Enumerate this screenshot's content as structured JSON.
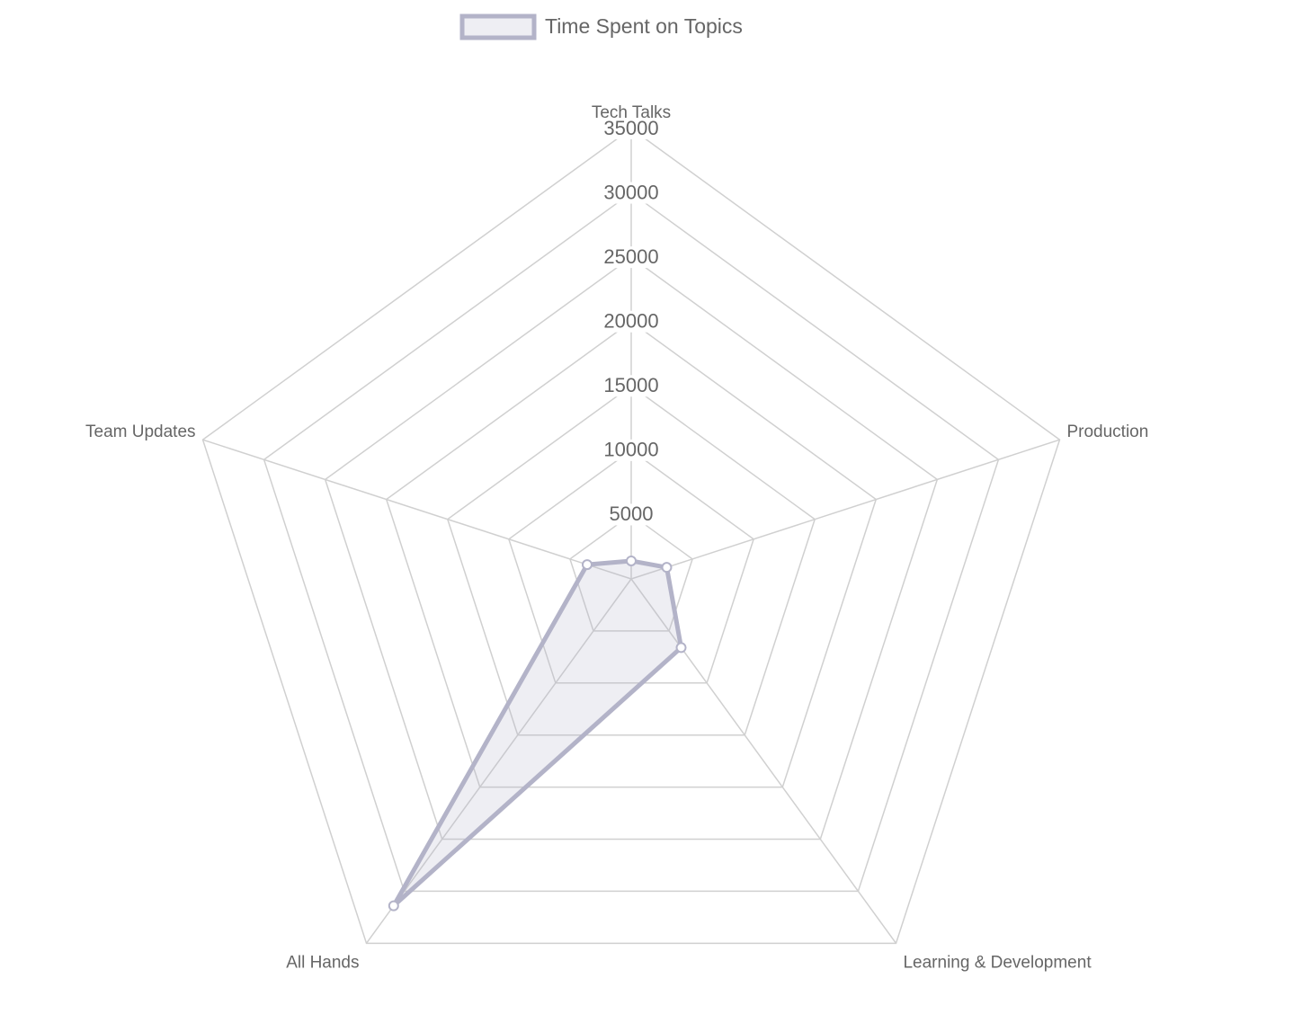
{
  "chart_data": {
    "type": "radar",
    "categories": [
      "Tech Talks",
      "Production",
      "Learning & Development",
      "All Hands",
      "Team Updates"
    ],
    "series": [
      {
        "name": "Time Spent on Topics",
        "color": "#b3b3c8",
        "values": [
          1400,
          2900,
          6600,
          31400,
          3600
        ]
      }
    ],
    "ylim": [
      0,
      35000
    ],
    "yticks": [
      5000,
      10000,
      15000,
      20000,
      25000,
      30000,
      35000
    ],
    "grid": true,
    "legend": "top"
  }
}
